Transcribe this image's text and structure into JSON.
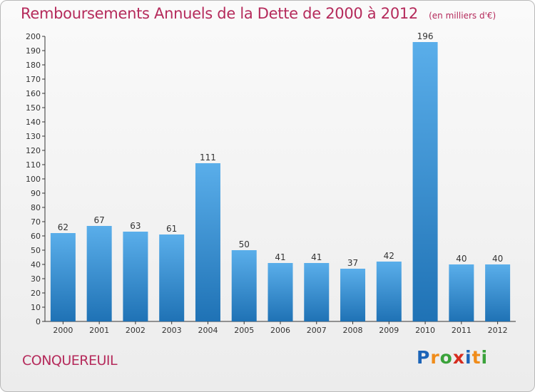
{
  "page": {
    "title": "Remboursements Annuels de la Dette de 2000 à 2012",
    "unit": "(en milliers d'€)",
    "commune": "CONQUEREUIL",
    "logo": "Proxiti"
  },
  "colors": {
    "accent": "#b52a5b",
    "bar_light": "#5aaeea",
    "bar_dark": "#1f72b5"
  },
  "logo_letters": [
    {
      "ch": "P",
      "color": "#1c64b8"
    },
    {
      "ch": "r",
      "color": "#f08c1a"
    },
    {
      "ch": "o",
      "color": "#3aa23a"
    },
    {
      "ch": "x",
      "color": "#d62c1f"
    },
    {
      "ch": "i",
      "color": "#1c64b8"
    },
    {
      "ch": "t",
      "color": "#f08c1a"
    },
    {
      "ch": "i",
      "color": "#3aa23a"
    }
  ],
  "chart_data": {
    "type": "bar",
    "title": "Remboursements Annuels de la Dette de 2000 à 2012",
    "categories": [
      "2000",
      "2001",
      "2002",
      "2003",
      "2004",
      "2005",
      "2006",
      "2007",
      "2008",
      "2009",
      "2010",
      "2011",
      "2012"
    ],
    "values": [
      62,
      67,
      63,
      61,
      111,
      50,
      41,
      41,
      37,
      42,
      196,
      40,
      40
    ],
    "ylim": [
      0,
      200
    ],
    "yticks": [
      0,
      10,
      20,
      30,
      40,
      50,
      60,
      70,
      80,
      90,
      100,
      110,
      120,
      130,
      140,
      150,
      160,
      170,
      180,
      190,
      200
    ],
    "grid": false,
    "data_labels": true
  }
}
